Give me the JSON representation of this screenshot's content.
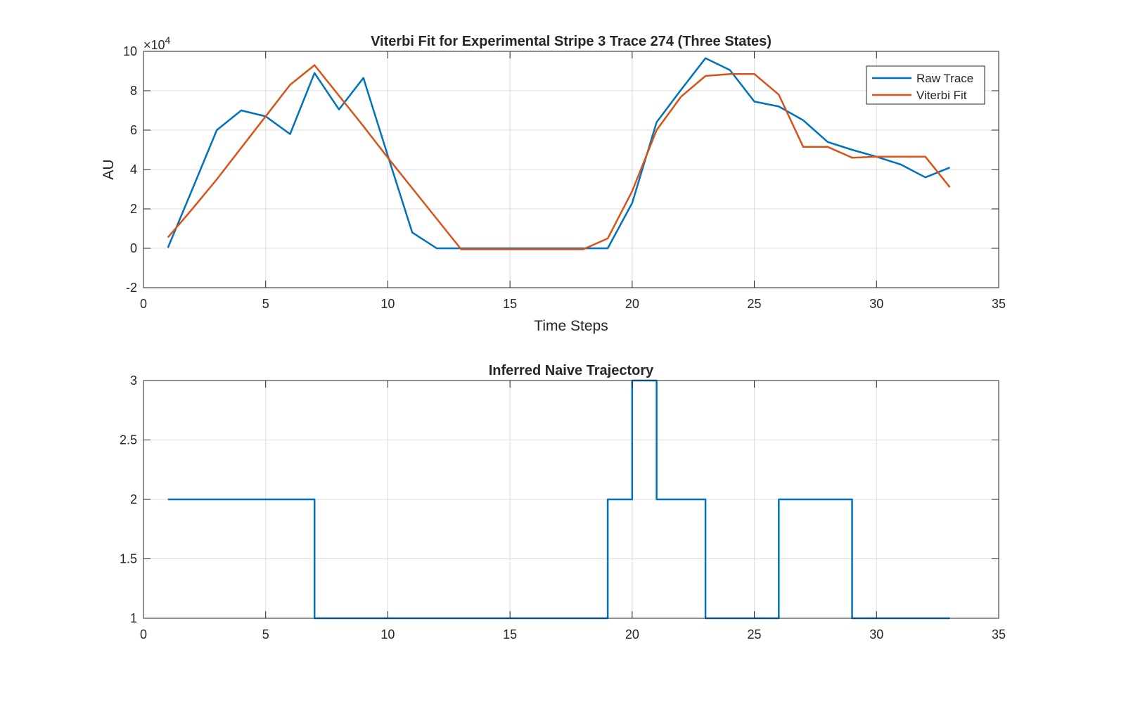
{
  "colors": {
    "raw": "#0072BD",
    "viterbi": "#D95319",
    "grid": "#dcdcdc",
    "axis": "#262626"
  },
  "chart_data": [
    {
      "type": "line",
      "title": "Viterbi Fit for Experimental Stripe 3 Trace 274 (Three States)",
      "xlabel": "Time Steps",
      "ylabel": "AU",
      "exponent_label": "×10",
      "exponent_power": "4",
      "xlim": [
        0,
        35
      ],
      "ylim": [
        -2,
        10
      ],
      "scale_factor": 10000,
      "xticks": [
        0,
        5,
        10,
        15,
        20,
        25,
        30,
        35
      ],
      "xtick_labels": [
        "0",
        "5",
        "10",
        "15",
        "20",
        "25",
        "30",
        "35"
      ],
      "yticks": [
        -2,
        0,
        2,
        4,
        6,
        8,
        10
      ],
      "ytick_labels": [
        "-2",
        "0",
        "2",
        "4",
        "6",
        "8",
        "10"
      ],
      "grid": true,
      "legend_position": "top-right",
      "x": [
        1,
        2,
        3,
        4,
        5,
        6,
        7,
        8,
        9,
        10,
        11,
        12,
        13,
        14,
        15,
        16,
        17,
        18,
        19,
        20,
        21,
        22,
        23,
        24,
        25,
        26,
        27,
        28,
        29,
        30,
        31,
        32,
        33
      ],
      "series": [
        {
          "name": "Raw Trace",
          "color": "#0072BD",
          "values": [
            0.03,
            3.0,
            6.0,
            7.0,
            6.7,
            5.8,
            8.9,
            7.05,
            8.65,
            4.7,
            0.8,
            0.0,
            0.0,
            0.0,
            0.0,
            0.0,
            0.0,
            0.0,
            0.0,
            2.3,
            6.4,
            8.05,
            9.65,
            9.05,
            7.45,
            7.2,
            6.5,
            5.4,
            5.0,
            4.65,
            4.25,
            3.6,
            4.1
          ]
        },
        {
          "name": "Viterbi Fit",
          "color": "#D95319",
          "values": [
            0.55,
            2.0,
            3.5,
            5.1,
            6.7,
            8.3,
            9.3,
            7.75,
            6.2,
            4.6,
            3.05,
            1.5,
            -0.05,
            -0.05,
            -0.05,
            -0.05,
            -0.05,
            -0.05,
            0.5,
            2.9,
            6.0,
            7.7,
            8.75,
            8.85,
            8.85,
            7.8,
            5.15,
            5.15,
            4.6,
            4.65,
            4.65,
            4.65,
            3.1
          ]
        }
      ]
    },
    {
      "type": "line",
      "title": "Inferred Naive Trajectory",
      "xlabel": "",
      "ylabel": "",
      "xlim": [
        0,
        35
      ],
      "ylim": [
        1,
        3
      ],
      "xticks": [
        0,
        5,
        10,
        15,
        20,
        25,
        30,
        35
      ],
      "xtick_labels": [
        "0",
        "5",
        "10",
        "15",
        "20",
        "25",
        "30",
        "35"
      ],
      "yticks": [
        1,
        1.5,
        2,
        2.5,
        3
      ],
      "ytick_labels": [
        "1",
        "1.5",
        "2",
        "2.5",
        "3"
      ],
      "grid": true,
      "step": true,
      "x": [
        1,
        2,
        3,
        4,
        5,
        6,
        7,
        8,
        9,
        10,
        11,
        12,
        13,
        14,
        15,
        16,
        17,
        18,
        19,
        20,
        21,
        22,
        23,
        24,
        25,
        26,
        27,
        28,
        29,
        30,
        31,
        32,
        33
      ],
      "series": [
        {
          "color": "#0072BD",
          "values": [
            2,
            2,
            2,
            2,
            2,
            2,
            1,
            1,
            1,
            1,
            1,
            1,
            1,
            1,
            1,
            1,
            1,
            1,
            2,
            3,
            2,
            2,
            1,
            1,
            1,
            2,
            2,
            2,
            1,
            1,
            1,
            1,
            1
          ]
        }
      ]
    }
  ]
}
